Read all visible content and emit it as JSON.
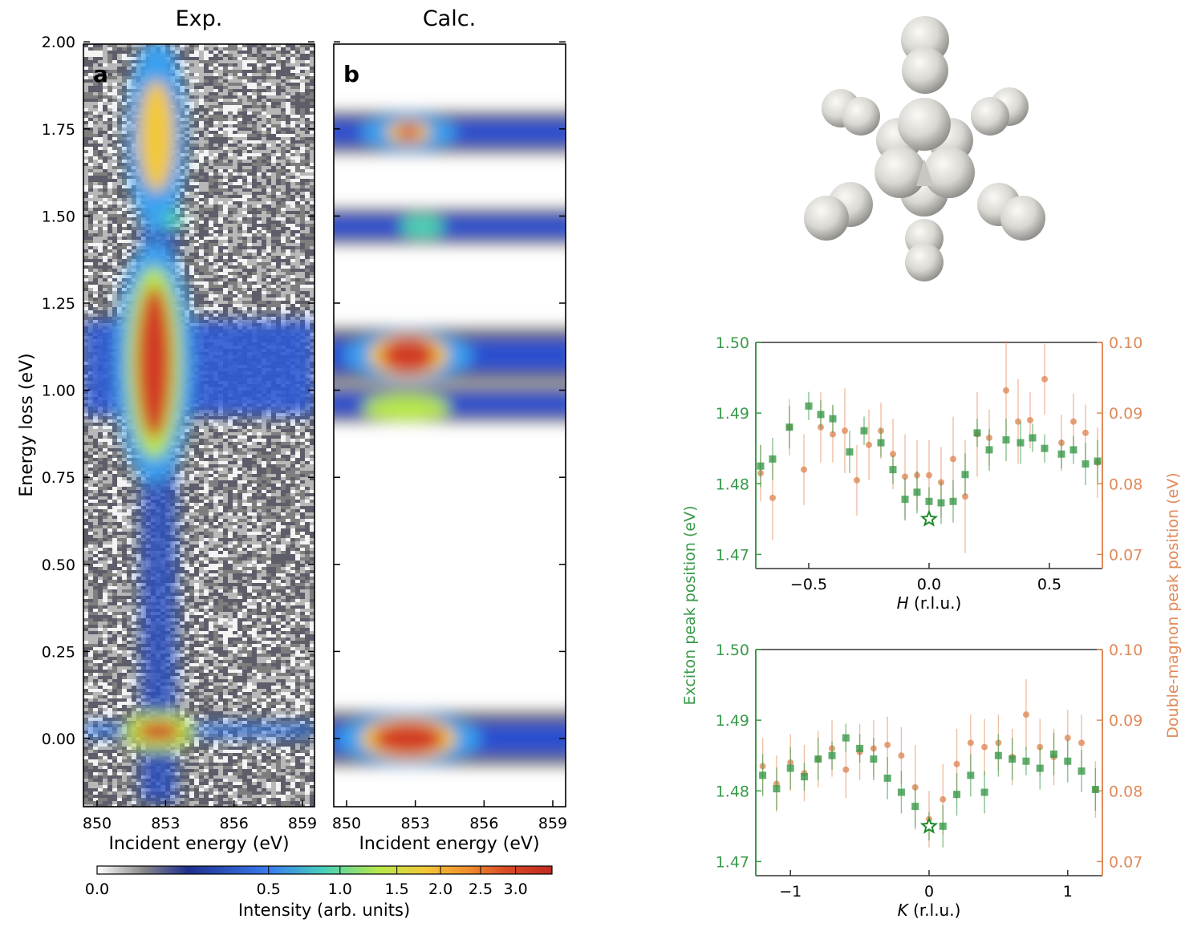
{
  "colors": {
    "exciton": "#3a9a4a",
    "magnon": "#e08a5a",
    "hot": "#d23a26",
    "mid": "#f4d03f",
    "cool": "#2c5fd6",
    "background_noise": "#8c8c8c"
  },
  "panel_a": {
    "title": "Exp.",
    "letter": "a",
    "ylabel": "Energy loss (eV)",
    "xlabel": "Incident energy (eV)",
    "yticks": [
      "2.00",
      "1.75",
      "1.50",
      "1.25",
      "1.00",
      "0.75",
      "0.50",
      "0.25",
      "0.00"
    ],
    "xticks": [
      "850",
      "853",
      "856",
      "859"
    ]
  },
  "panel_b": {
    "title": "Calc.",
    "letter": "b",
    "xlabel": "Incident energy (eV)",
    "xticks": [
      "850",
      "853",
      "856",
      "859"
    ]
  },
  "colorbar": {
    "label": "Intensity (arb. units)",
    "ticks": [
      "0.0",
      "0.5",
      "1.0",
      "1.5",
      "2.0",
      "2.5",
      "3.0"
    ]
  },
  "cluster_icon": "octahedral-sphere-cluster",
  "dispersion": {
    "left_axis_label": "Exciton peak position (eV)",
    "right_axis_label": "Double-magnon peak position (eV)",
    "left_ticks": [
      "1.50",
      "1.49",
      "1.48",
      "1.47"
    ],
    "right_ticks": [
      "0.10",
      "0.09",
      "0.08",
      "0.07"
    ],
    "H_panel": {
      "xlabel_var": "H",
      "xlabel_unit": " (r.l.u.)",
      "xticks": [
        "−0.5",
        "0.0",
        "0.5"
      ]
    },
    "K_panel": {
      "xlabel_var": "K",
      "xlabel_unit": " (r.l.u.)",
      "xticks": [
        "−1",
        "0",
        "1"
      ]
    }
  },
  "chart_data": [
    {
      "type": "heatmap",
      "panel": "a",
      "title": "Exp.",
      "xlabel": "Incident energy (eV)",
      "ylabel": "Energy loss (eV)",
      "xlim": [
        849.5,
        859.5
      ],
      "ylim": [
        -0.2,
        2.0
      ],
      "features": [
        {
          "incident": 852.7,
          "loss": 0.02,
          "intensity": 3.0
        },
        {
          "incident": 852.5,
          "loss": 1.08,
          "intensity": 3.0
        },
        {
          "incident": 852.6,
          "loss": 1.73,
          "intensity": 2.0
        },
        {
          "incident": 853.3,
          "loss": 1.49,
          "intensity": 1.0
        }
      ]
    },
    {
      "type": "heatmap",
      "panel": "b",
      "title": "Calc.",
      "xlabel": "Incident energy (eV)",
      "xlim": [
        849.5,
        859.5
      ],
      "ylim": [
        -0.2,
        2.0
      ],
      "features": [
        {
          "incident": 852.7,
          "loss": 0.0,
          "intensity": 3.0
        },
        {
          "incident": 852.7,
          "loss": 1.1,
          "intensity": 3.0
        },
        {
          "incident": 852.6,
          "loss": 0.95,
          "intensity": 2.0
        },
        {
          "incident": 852.7,
          "loss": 1.74,
          "intensity": 3.0
        },
        {
          "incident": 853.3,
          "loss": 1.47,
          "intensity": 0.8
        }
      ]
    },
    {
      "type": "scatter",
      "panel": "H",
      "xlabel": "H (r.l.u.)",
      "ylabel": "Exciton peak position (eV)",
      "ylabel_right": "Double-magnon peak position (eV)",
      "xlim": [
        -0.72,
        0.72
      ],
      "ylim": [
        1.468,
        1.5
      ],
      "ylim_right": [
        0.068,
        0.1
      ],
      "series": [
        {
          "axis": "left",
          "x": [
            -0.7,
            -0.65,
            -0.58,
            -0.5,
            -0.45,
            -0.4,
            -0.33,
            -0.27,
            -0.2,
            -0.15,
            -0.1,
            -0.05,
            0.0,
            0.05,
            0.1,
            0.15,
            0.2,
            0.25,
            0.32,
            0.38,
            0.43,
            0.48,
            0.55,
            0.6,
            0.65,
            0.7
          ],
          "y": [
            1.4825,
            1.4835,
            1.488,
            1.491,
            1.4898,
            1.4892,
            1.4845,
            1.4875,
            1.4858,
            1.482,
            1.4778,
            1.4788,
            1.4775,
            1.4773,
            1.4775,
            1.4813,
            1.4872,
            1.4848,
            1.4862,
            1.4858,
            1.4865,
            1.485,
            1.4842,
            1.4848,
            1.4828,
            1.4832
          ],
          "yerr": [
            0.003,
            0.003,
            0.003,
            0.002,
            0.002,
            0.002,
            0.003,
            0.002,
            0.002,
            0.002,
            0.003,
            0.003,
            0.002,
            0.003,
            0.003,
            0.003,
            0.002,
            0.003,
            0.003,
            0.003,
            0.002,
            0.002,
            0.002,
            0.002,
            0.003,
            0.003
          ]
        },
        {
          "axis": "right",
          "x": [
            -0.7,
            -0.65,
            -0.58,
            -0.52,
            -0.45,
            -0.4,
            -0.35,
            -0.3,
            -0.25,
            -0.2,
            -0.15,
            -0.1,
            -0.05,
            0.0,
            0.05,
            0.1,
            0.15,
            0.2,
            0.25,
            0.32,
            0.37,
            0.42,
            0.48,
            0.55,
            0.6,
            0.65,
            0.7
          ],
          "y": [
            0.0815,
            0.078,
            0.088,
            0.082,
            0.088,
            0.087,
            0.0875,
            0.0805,
            0.0855,
            0.0875,
            0.0842,
            0.081,
            0.0812,
            0.0812,
            0.0802,
            0.0835,
            0.0782,
            0.087,
            0.0865,
            0.0932,
            0.0888,
            0.089,
            0.0948,
            0.0858,
            0.0888,
            0.0872,
            0.083
          ],
          "yerr": [
            0.004,
            0.006,
            0.004,
            0.005,
            0.005,
            0.004,
            0.006,
            0.005,
            0.005,
            0.004,
            0.005,
            0.006,
            0.005,
            0.005,
            0.005,
            0.006,
            0.008,
            0.006,
            0.004,
            0.007,
            0.006,
            0.004,
            0.005,
            0.004,
            0.004,
            0.004,
            0.005
          ]
        }
      ],
      "highlight": {
        "x": 0.0,
        "y": 1.475
      }
    },
    {
      "type": "scatter",
      "panel": "K",
      "xlabel": "K (r.l.u.)",
      "ylabel": "Exciton peak position (eV)",
      "ylabel_right": "Double-magnon peak position (eV)",
      "xlim": [
        -1.25,
        1.25
      ],
      "ylim": [
        1.468,
        1.5
      ],
      "ylim_right": [
        0.068,
        0.1
      ],
      "series": [
        {
          "axis": "left",
          "x": [
            -1.2,
            -1.1,
            -1.0,
            -0.9,
            -0.8,
            -0.7,
            -0.6,
            -0.5,
            -0.4,
            -0.3,
            -0.2,
            -0.1,
            0.0,
            0.1,
            0.2,
            0.3,
            0.4,
            0.5,
            0.6,
            0.7,
            0.8,
            0.9,
            1.0,
            1.1,
            1.2
          ],
          "y": [
            1.4822,
            1.4803,
            1.4832,
            1.482,
            1.4845,
            1.485,
            1.4875,
            1.486,
            1.4845,
            1.4818,
            1.4798,
            1.4778,
            1.475,
            1.475,
            1.4795,
            1.4822,
            1.4798,
            1.485,
            1.4845,
            1.4842,
            1.4832,
            1.4852,
            1.4842,
            1.4828,
            1.4802
          ],
          "yerr": [
            0.003,
            0.003,
            0.003,
            0.002,
            0.003,
            0.002,
            0.002,
            0.002,
            0.003,
            0.003,
            0.003,
            0.003,
            0.002,
            0.003,
            0.003,
            0.003,
            0.003,
            0.003,
            0.003,
            0.002,
            0.003,
            0.003,
            0.003,
            0.003,
            0.003
          ]
        },
        {
          "axis": "right",
          "x": [
            -1.2,
            -1.1,
            -1.0,
            -0.9,
            -0.8,
            -0.7,
            -0.6,
            -0.5,
            -0.4,
            -0.3,
            -0.2,
            -0.1,
            0.0,
            0.1,
            0.2,
            0.3,
            0.4,
            0.5,
            0.6,
            0.7,
            0.8,
            0.9,
            1.0,
            1.1,
            1.2
          ],
          "y": [
            0.0835,
            0.081,
            0.084,
            0.0825,
            0.0845,
            0.086,
            0.083,
            0.0855,
            0.086,
            0.0865,
            0.085,
            0.0805,
            0.076,
            0.0788,
            0.0838,
            0.0868,
            0.0862,
            0.0868,
            0.0848,
            0.0908,
            0.0862,
            0.0848,
            0.0875,
            0.0868,
            0.0802
          ],
          "yerr": [
            0.004,
            0.004,
            0.004,
            0.004,
            0.004,
            0.004,
            0.004,
            0.004,
            0.004,
            0.004,
            0.004,
            0.006,
            0.004,
            0.005,
            0.005,
            0.004,
            0.004,
            0.004,
            0.004,
            0.005,
            0.004,
            0.004,
            0.004,
            0.004,
            0.004
          ]
        }
      ],
      "highlight": {
        "x": 0.0,
        "y": 1.475
      }
    }
  ]
}
